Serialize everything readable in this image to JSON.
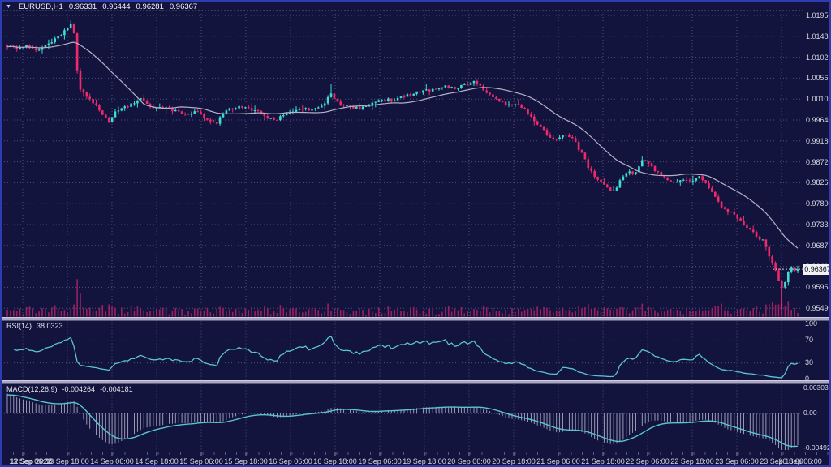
{
  "header": {
    "dropdown_icon": "▼",
    "symbol": "EURUSD,H1",
    "open": "0.96331",
    "high": "0.96444",
    "low": "0.96281",
    "close": "0.96367"
  },
  "price_axis": {
    "labels": [
      "1.01950",
      "1.01485",
      "1.01025",
      "1.00565",
      "1.00105",
      "0.99640",
      "0.99180",
      "0.98720",
      "0.98260",
      "0.97800",
      "0.97335",
      "0.96875",
      "0.96415",
      "0.95955",
      "0.95490"
    ],
    "current": "0.96367"
  },
  "time_axis": {
    "labels": [
      "12 Sep 2022",
      "13 Sep 06:00",
      "13 Sep 18:00",
      "14 Sep 06:00",
      "14 Sep 18:00",
      "15 Sep 06:00",
      "15 Sep 18:00",
      "16 Sep 06:00",
      "16 Sep 18:00",
      "19 Sep 06:00",
      "19 Sep 18:00",
      "20 Sep 06:00",
      "20 Sep 18:00",
      "21 Sep 06:00",
      "21 Sep 18:00",
      "22 Sep 06:00",
      "22 Sep 18:00",
      "23 Sep 06:00",
      "23 Sep 18:00",
      "26 Sep 06:00"
    ]
  },
  "rsi_panel": {
    "name": "RSI(14)",
    "value": "38.0323",
    "levels": [
      "100",
      "70",
      "30",
      "0"
    ]
  },
  "macd_panel": {
    "name": "MACD(12,26,9)",
    "main_value": "-0.004264",
    "signal_value": "-0.004181",
    "scale": [
      "0.003038",
      "0.00",
      "-0.004929"
    ]
  },
  "colors": {
    "background": "#12143e",
    "window_border": "#2d3cb0",
    "grid": "#4d527e",
    "frame_dash": "#5a5f8c",
    "bull_candle": "#3edcd2",
    "bear_candle": "#f0296a",
    "volume": "#9b2062",
    "moving_average": "#b5b2c6",
    "indicator_line": "#5ac4d0",
    "macd_histogram": "#c3c0d8",
    "axis_line": "#8d8ba8",
    "text": "#d6d8e4",
    "price_tag_bg": "#f1f1f5"
  },
  "chart_data": {
    "type": "candlestick",
    "title": "EURUSD,H1",
    "symbol": "EURUSD",
    "timeframe": "H1",
    "current_ohlc": {
      "open": 0.96331,
      "high": 0.96444,
      "low": 0.96281,
      "close": 0.96367
    },
    "ylabel": "price",
    "ylim": [
      0.9528,
      1.0222
    ],
    "y_ticks": [
      1.0195,
      1.01485,
      1.01025,
      1.00565,
      1.00105,
      0.9964,
      0.9918,
      0.9872,
      0.9826,
      0.978,
      0.97335,
      0.96875,
      0.96415,
      0.95955,
      0.9549
    ],
    "x_labels": [
      "12 Sep 2022",
      "13 Sep 06:00",
      "13 Sep 18:00",
      "14 Sep 06:00",
      "14 Sep 18:00",
      "15 Sep 06:00",
      "15 Sep 18:00",
      "16 Sep 06:00",
      "16 Sep 18:00",
      "19 Sep 06:00",
      "19 Sep 18:00",
      "20 Sep 06:00",
      "20 Sep 18:00",
      "21 Sep 06:00",
      "21 Sep 18:00",
      "22 Sep 06:00",
      "22 Sep 18:00",
      "23 Sep 06:00",
      "23 Sep 18:00",
      "26 Sep 06:00"
    ],
    "candle_count": 250,
    "seed": 9,
    "price_path": [
      [
        0,
        1.0128
      ],
      [
        0.008,
        1.0125
      ],
      [
        0.013,
        1.0118
      ],
      [
        0.024,
        1.013
      ],
      [
        0.032,
        1.0122
      ],
      [
        0.039,
        1.0118
      ],
      [
        0.049,
        1.0128
      ],
      [
        0.06,
        1.0143
      ],
      [
        0.07,
        1.0155
      ],
      [
        0.08,
        1.0178
      ],
      [
        0.083,
        1.0187
      ],
      [
        0.088,
        1.008
      ],
      [
        0.092,
        1.003
      ],
      [
        0.101,
        1.0018
      ],
      [
        0.111,
        1.0
      ],
      [
        0.121,
        0.9975
      ],
      [
        0.129,
        0.996
      ],
      [
        0.137,
        0.9985
      ],
      [
        0.147,
        0.9992
      ],
      [
        0.157,
        1.0
      ],
      [
        0.169,
        1.001
      ],
      [
        0.183,
        0.999
      ],
      [
        0.198,
        0.9993
      ],
      [
        0.214,
        0.9985
      ],
      [
        0.227,
        0.9975
      ],
      [
        0.239,
        0.9982
      ],
      [
        0.255,
        0.9965
      ],
      [
        0.265,
        0.9958
      ],
      [
        0.275,
        0.9985
      ],
      [
        0.291,
        0.9993
      ],
      [
        0.306,
        0.999
      ],
      [
        0.321,
        0.998
      ],
      [
        0.337,
        0.9962
      ],
      [
        0.352,
        0.998
      ],
      [
        0.368,
        0.999
      ],
      [
        0.383,
        0.9988
      ],
      [
        0.398,
        0.9995
      ],
      [
        0.409,
        1.0022
      ],
      [
        0.416,
        1.0005
      ],
      [
        0.429,
        0.9995
      ],
      [
        0.445,
        0.999
      ],
      [
        0.46,
        1.0
      ],
      [
        0.475,
        1.0008
      ],
      [
        0.491,
        1.001
      ],
      [
        0.506,
        1.002
      ],
      [
        0.522,
        1.0028
      ],
      [
        0.537,
        1.003
      ],
      [
        0.552,
        1.0038
      ],
      [
        0.568,
        1.0035
      ],
      [
        0.583,
        1.0045
      ],
      [
        0.593,
        1.0048
      ],
      [
        0.604,
        1.003
      ],
      [
        0.614,
        1.0018
      ],
      [
        0.624,
        1.0005
      ],
      [
        0.638,
        0.9995
      ],
      [
        0.648,
        1.0
      ],
      [
        0.66,
        0.9975
      ],
      [
        0.672,
        0.9955
      ],
      [
        0.686,
        0.993
      ],
      [
        0.696,
        0.992
      ],
      [
        0.706,
        0.9935
      ],
      [
        0.717,
        0.992
      ],
      [
        0.727,
        0.989
      ],
      [
        0.737,
        0.9855
      ],
      [
        0.75,
        0.983
      ],
      [
        0.761,
        0.981
      ],
      [
        0.768,
        0.9807
      ],
      [
        0.778,
        0.984
      ],
      [
        0.785,
        0.9855
      ],
      [
        0.794,
        0.9845
      ],
      [
        0.804,
        0.988
      ],
      [
        0.812,
        0.987
      ],
      [
        0.822,
        0.985
      ],
      [
        0.833,
        0.9835
      ],
      [
        0.843,
        0.9825
      ],
      [
        0.853,
        0.9835
      ],
      [
        0.863,
        0.983
      ],
      [
        0.874,
        0.984
      ],
      [
        0.884,
        0.9828
      ],
      [
        0.894,
        0.98
      ],
      [
        0.904,
        0.9775
      ],
      [
        0.915,
        0.9762
      ],
      [
        0.925,
        0.9745
      ],
      [
        0.935,
        0.973
      ],
      [
        0.946,
        0.9712
      ],
      [
        0.956,
        0.97
      ],
      [
        0.963,
        0.967
      ],
      [
        0.97,
        0.964
      ],
      [
        0.976,
        0.9612
      ],
      [
        0.981,
        0.9592
      ],
      [
        0.987,
        0.963
      ],
      [
        0.992,
        0.9645
      ],
      [
        0.997,
        0.963
      ],
      [
        1,
        0.96367
      ]
    ],
    "wick_events": [
      {
        "t": 0.981,
        "type": "low",
        "price": 0.9549
      },
      {
        "t": 0.409,
        "type": "high",
        "price": 1.0045
      }
    ],
    "moving_average": {
      "period": 22
    },
    "indicators": [
      {
        "name": "RSI",
        "params": "14",
        "value": 38.0323,
        "range": [
          0,
          100
        ],
        "levels": [
          70,
          30
        ]
      },
      {
        "name": "MACD",
        "params": "12,26,9",
        "main": -0.004264,
        "signal": -0.004181,
        "scale_top": 0.003038,
        "scale_bottom": -0.004929
      }
    ],
    "legend_position": "none",
    "grid": true
  }
}
